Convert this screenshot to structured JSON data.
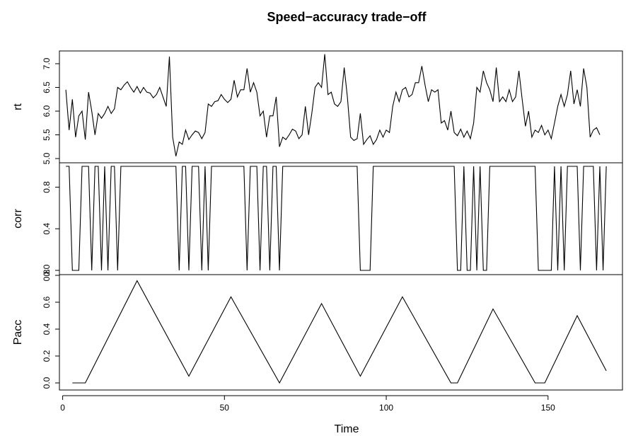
{
  "chart_data": {
    "type": "line",
    "title": "Speed−accuracy trade−off",
    "xlabel": "Time",
    "x": [
      1,
      2,
      3,
      4,
      5,
      6,
      7,
      8,
      9,
      10,
      11,
      12,
      13,
      14,
      15,
      16,
      17,
      18,
      19,
      20,
      21,
      22,
      23,
      24,
      25,
      26,
      27,
      28,
      29,
      30,
      31,
      32,
      33,
      34,
      35,
      36,
      37,
      38,
      39,
      40,
      41,
      42,
      43,
      44,
      45,
      46,
      47,
      48,
      49,
      50,
      51,
      52,
      53,
      54,
      55,
      56,
      57,
      58,
      59,
      60,
      61,
      62,
      63,
      64,
      65,
      66,
      67,
      68,
      69,
      70,
      71,
      72,
      73,
      74,
      75,
      76,
      77,
      78,
      79,
      80,
      81,
      82,
      83,
      84,
      85,
      86,
      87,
      88,
      89,
      90,
      91,
      92,
      93,
      94,
      95,
      96,
      97,
      98,
      99,
      100,
      101,
      102,
      103,
      104,
      105,
      106,
      107,
      108,
      109,
      110,
      111,
      112,
      113,
      114,
      115,
      116,
      117,
      118,
      119,
      120,
      121,
      122,
      123,
      124,
      125,
      126,
      127,
      128,
      129,
      130,
      131,
      132,
      133,
      134,
      135,
      136,
      137,
      138,
      139,
      140,
      141,
      142,
      143,
      144,
      145,
      146,
      147,
      148,
      149,
      150,
      151,
      152,
      153,
      154,
      155,
      156,
      157,
      158,
      159,
      160,
      161,
      162,
      163,
      164,
      165,
      166,
      167,
      168
    ],
    "xlim": [
      1,
      168
    ],
    "xticks": [
      "0",
      "50",
      "100",
      "150"
    ],
    "xtick_values": [
      0,
      50,
      100,
      150
    ],
    "panels": [
      {
        "name": "rt",
        "ylabel": "rt",
        "ylim": [
          5.0,
          7.2
        ],
        "yticks": [
          "5.0",
          "5.5",
          "6.0",
          "6.5",
          "7.0"
        ],
        "ytick_values": [
          5.0,
          5.5,
          6.0,
          6.5,
          7.0
        ],
        "values": [
          6.45,
          5.6,
          6.25,
          5.45,
          5.9,
          6.0,
          5.4,
          6.4,
          6.0,
          5.5,
          5.95,
          5.85,
          5.95,
          6.1,
          5.95,
          6.05,
          6.5,
          6.45,
          6.55,
          6.62,
          6.5,
          6.4,
          6.52,
          6.38,
          6.5,
          6.4,
          6.38,
          6.28,
          6.35,
          6.5,
          6.3,
          6.1,
          7.15,
          5.45,
          5.05,
          5.35,
          5.3,
          5.6,
          5.4,
          5.5,
          5.58,
          5.55,
          5.42,
          5.55,
          6.15,
          6.1,
          6.2,
          6.22,
          6.35,
          6.25,
          6.18,
          6.25,
          6.65,
          6.3,
          6.45,
          6.45,
          6.9,
          6.4,
          6.6,
          6.4,
          5.9,
          6.0,
          5.45,
          5.9,
          5.9,
          6.3,
          5.25,
          5.45,
          5.4,
          5.5,
          5.62,
          5.58,
          5.42,
          5.5,
          6.1,
          5.5,
          5.95,
          6.5,
          6.6,
          6.5,
          7.2,
          6.35,
          6.4,
          6.15,
          6.1,
          6.2,
          6.92,
          6.3,
          5.45,
          5.38,
          5.42,
          5.95,
          5.3,
          5.4,
          5.48,
          5.3,
          5.4,
          5.6,
          5.45,
          5.6,
          5.55,
          6.1,
          6.4,
          6.2,
          6.45,
          6.5,
          6.3,
          6.35,
          6.6,
          6.6,
          6.95,
          6.55,
          6.2,
          6.45,
          6.4,
          6.45,
          5.75,
          5.8,
          5.6,
          6.0,
          5.55,
          5.48,
          5.62,
          5.45,
          5.58,
          5.42,
          5.75,
          6.5,
          6.4,
          6.85,
          6.6,
          6.45,
          6.2,
          6.92,
          6.2,
          6.3,
          6.2,
          6.45,
          6.2,
          6.3,
          6.85,
          6.25,
          5.68,
          6.0,
          5.45,
          5.6,
          5.55,
          5.7,
          5.5,
          5.6,
          5.42,
          5.75,
          6.1,
          6.35,
          6.1,
          6.35,
          6.85,
          6.15,
          6.45,
          6.1,
          6.9,
          6.5,
          5.45,
          5.6,
          5.65,
          5.5
        ],
        "baseline": null
      },
      {
        "name": "corr",
        "ylabel": "corr",
        "ylim": [
          0,
          1
        ],
        "yticks": [
          "0.0",
          "0.4",
          "0.8"
        ],
        "ytick_values": [
          0.0,
          0.4,
          0.8
        ],
        "values": [
          1,
          1,
          0,
          0,
          0,
          1,
          1,
          1,
          0,
          1,
          1,
          0,
          1,
          0,
          1,
          1,
          0,
          1,
          1,
          1,
          1,
          1,
          1,
          1,
          1,
          1,
          1,
          1,
          1,
          1,
          1,
          1,
          1,
          1,
          1,
          0,
          1,
          1,
          0,
          1,
          1,
          1,
          0,
          1,
          0,
          1,
          1,
          1,
          1,
          1,
          1,
          1,
          1,
          1,
          1,
          1,
          0,
          1,
          1,
          1,
          0,
          1,
          1,
          0,
          1,
          1,
          0,
          1,
          1,
          1,
          1,
          1,
          1,
          1,
          1,
          1,
          1,
          1,
          1,
          1,
          1,
          1,
          1,
          1,
          1,
          1,
          1,
          1,
          1,
          1,
          1,
          0,
          0,
          0,
          0,
          1,
          1,
          1,
          1,
          1,
          1,
          1,
          1,
          1,
          1,
          1,
          1,
          1,
          1,
          1,
          1,
          1,
          1,
          1,
          1,
          1,
          1,
          1,
          1,
          1,
          1,
          0,
          0,
          1,
          0,
          0,
          1,
          0,
          1,
          0,
          0,
          1,
          1,
          1,
          1,
          1,
          1,
          1,
          1,
          1,
          1,
          1,
          1,
          1,
          1,
          1,
          0,
          0,
          0,
          0,
          0,
          1,
          0,
          1,
          0,
          1,
          1,
          1,
          1,
          0,
          1,
          1,
          1,
          1,
          0,
          1,
          0,
          1
        ],
        "baseline": null
      },
      {
        "name": "Pacc",
        "ylabel": "Pacc",
        "ylim": [
          -0.03,
          0.78
        ],
        "yticks": [
          "0.0",
          "0.2",
          "0.4",
          "0.6",
          "0.8"
        ],
        "ytick_values": [
          0.0,
          0.2,
          0.4,
          0.6,
          0.8
        ],
        "vertices": [
          [
            3,
            0
          ],
          [
            7,
            0
          ],
          [
            23,
            0.76
          ],
          [
            39,
            0.05
          ],
          [
            52,
            0.64
          ],
          [
            67,
            0
          ],
          [
            80,
            0.59
          ],
          [
            92,
            0.05
          ],
          [
            105,
            0.64
          ],
          [
            120,
            0
          ],
          [
            122,
            0
          ],
          [
            133,
            0.55
          ],
          [
            146,
            0
          ],
          [
            149,
            0
          ],
          [
            159,
            0.5
          ],
          [
            168,
            0.09
          ]
        ]
      }
    ]
  }
}
